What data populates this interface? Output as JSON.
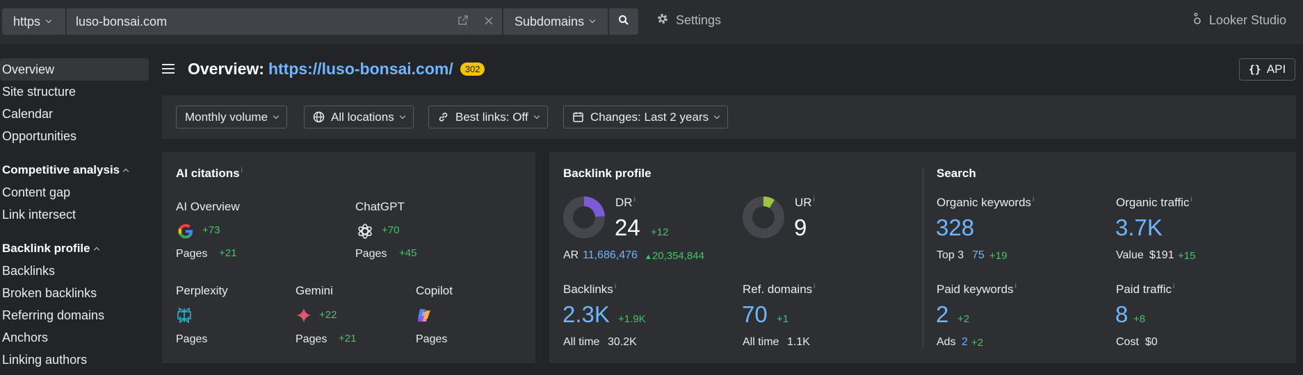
{
  "topbar": {
    "protocol": "https",
    "url": "luso-bonsai.com",
    "scope": "Subdomains",
    "settings": "Settings",
    "looker": "Looker Studio"
  },
  "sidebar": {
    "items": [
      "Overview",
      "Site structure",
      "Calendar",
      "Opportunities"
    ],
    "competitive_head": "Competitive analysis",
    "competitive_items": [
      "Content gap",
      "Link intersect"
    ],
    "backlink_head": "Backlink profile",
    "backlink_items": [
      "Backlinks",
      "Broken backlinks",
      "Referring domains",
      "Anchors",
      "Linking authors"
    ]
  },
  "header": {
    "title_prefix": "Overview:",
    "title_url": "https://luso-bonsai.com/",
    "status_badge": "302",
    "api_label": "API"
  },
  "filters": {
    "volume": "Monthly volume",
    "locations": "All locations",
    "best_links": "Best links: Off",
    "changes": "Changes: Last 2 years"
  },
  "ai_citations": {
    "title": "AI citations",
    "info": "i",
    "ai_overview": {
      "name": "AI Overview",
      "delta": "+73",
      "pages_label": "Pages",
      "pages_delta": "+21"
    },
    "chatgpt": {
      "name": "ChatGPT",
      "delta": "+70",
      "pages_label": "Pages",
      "pages_delta": "+45"
    },
    "perplexity": {
      "name": "Perplexity",
      "pages_label": "Pages"
    },
    "gemini": {
      "name": "Gemini",
      "delta": "+22",
      "pages_label": "Pages",
      "pages_delta": "+21"
    },
    "copilot": {
      "name": "Copilot",
      "pages_label": "Pages"
    }
  },
  "backlink_profile": {
    "title": "Backlink profile",
    "dr": {
      "label": "DR",
      "value": "24",
      "delta": "+12",
      "fill": 0.24
    },
    "ur": {
      "label": "UR",
      "value": "9",
      "fill": 0.09
    },
    "ar_label": "AR",
    "ar_value": "11,686,476",
    "ar_delta": "20,354,844",
    "backlinks": {
      "label": "Backlinks",
      "value": "2.3K",
      "delta": "+1.9K",
      "alltime_label": "All time",
      "alltime_value": "30.2K"
    },
    "ref_domains": {
      "label": "Ref. domains",
      "value": "70",
      "delta": "+1",
      "alltime_label": "All time",
      "alltime_value": "1.1K"
    }
  },
  "search": {
    "title": "Search",
    "organic_keywords": {
      "label": "Organic keywords",
      "value": "328",
      "sub_label": "Top 3",
      "sub_value": "75",
      "sub_delta": "+19"
    },
    "organic_traffic": {
      "label": "Organic traffic",
      "value": "3.7K",
      "sub_label": "Value",
      "sub_value": "$191",
      "sub_delta": "+15"
    },
    "paid_keywords": {
      "label": "Paid keywords",
      "value": "2",
      "delta": "+2",
      "sub_label": "Ads",
      "sub_value": "2",
      "sub_delta": "+2"
    },
    "paid_traffic": {
      "label": "Paid traffic",
      "value": "8",
      "delta": "+8",
      "sub_label": "Cost",
      "sub_value": "$0"
    }
  },
  "colors": {
    "accent": "#6cb7ff",
    "positive": "#46c46a",
    "badge": "#f5c400",
    "dr_fill": "#7b5cd6",
    "ur_fill": "#9bc53d"
  }
}
